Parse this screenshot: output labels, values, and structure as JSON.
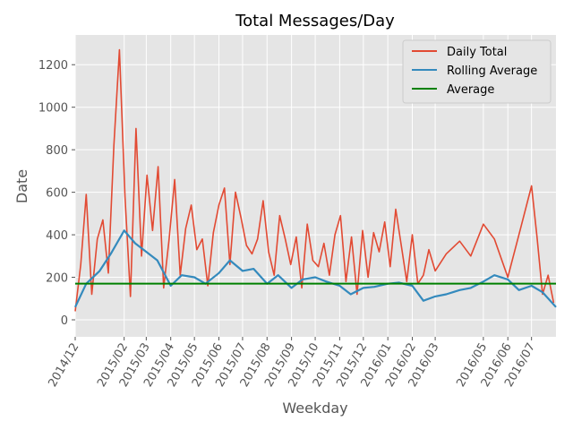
{
  "chart_data": {
    "type": "line",
    "title": "Total Messages/Day",
    "xlabel": "Weekday",
    "ylabel": "Date",
    "x_range": [
      "2014-12-01",
      "2016-08-01"
    ],
    "ylim": [
      -80,
      1340
    ],
    "grid": true,
    "legend_position": "top-right",
    "x_ticks": [
      "2014/12",
      "2015/02",
      "2015/03",
      "2015/04",
      "2015/05",
      "2015/06",
      "2015/07",
      "2015/08",
      "2015/09",
      "2015/10",
      "2015/11",
      "2015/12",
      "2016/01",
      "2016/02",
      "2016/03",
      "2016/05",
      "2016/06",
      "2016/07"
    ],
    "y_ticks": [
      0,
      200,
      400,
      600,
      800,
      1000,
      1200
    ],
    "colors": {
      "background": "#E5E5E5",
      "grid": "#FFFFFF",
      "daily_total": "#E24A33",
      "rolling_average": "#348ABD",
      "average": "#008000"
    },
    "series": [
      {
        "name": "Daily Total",
        "type": "line",
        "x": [
          "2014-12-01",
          "2014-12-08",
          "2014-12-15",
          "2014-12-22",
          "2014-12-29",
          "2015-01-05",
          "2015-01-12",
          "2015-01-19",
          "2015-01-26",
          "2015-02-02",
          "2015-02-09",
          "2015-02-16",
          "2015-02-23",
          "2015-03-02",
          "2015-03-09",
          "2015-03-16",
          "2015-03-23",
          "2015-03-30",
          "2015-04-06",
          "2015-04-13",
          "2015-04-20",
          "2015-04-27",
          "2015-05-04",
          "2015-05-11",
          "2015-05-18",
          "2015-05-25",
          "2015-06-01",
          "2015-06-08",
          "2015-06-15",
          "2015-06-22",
          "2015-06-29",
          "2015-07-06",
          "2015-07-13",
          "2015-07-20",
          "2015-07-27",
          "2015-08-03",
          "2015-08-10",
          "2015-08-17",
          "2015-08-24",
          "2015-08-31",
          "2015-09-07",
          "2015-09-14",
          "2015-09-21",
          "2015-09-28",
          "2015-10-05",
          "2015-10-12",
          "2015-10-19",
          "2015-10-26",
          "2015-11-02",
          "2015-11-09",
          "2015-11-16",
          "2015-11-23",
          "2015-11-30",
          "2015-12-07",
          "2015-12-14",
          "2015-12-21",
          "2015-12-28",
          "2016-01-04",
          "2016-01-11",
          "2016-01-18",
          "2016-01-25",
          "2016-02-01",
          "2016-02-08",
          "2016-02-15",
          "2016-02-22",
          "2016-03-01",
          "2016-03-15",
          "2016-04-01",
          "2016-04-15",
          "2016-05-01",
          "2016-05-15",
          "2016-06-01",
          "2016-06-15",
          "2016-07-01",
          "2016-07-08",
          "2016-07-15",
          "2016-07-22",
          "2016-07-29"
        ],
        "y": [
          40,
          260,
          590,
          120,
          380,
          470,
          220,
          820,
          1270,
          580,
          110,
          900,
          300,
          680,
          420,
          720,
          150,
          380,
          660,
          210,
          430,
          540,
          330,
          380,
          160,
          410,
          540,
          620,
          260,
          600,
          480,
          350,
          310,
          380,
          560,
          320,
          210,
          490,
          380,
          260,
          390,
          150,
          450,
          280,
          250,
          360,
          210,
          400,
          490,
          180,
          390,
          120,
          420,
          200,
          410,
          320,
          460,
          250,
          520,
          350,
          180,
          400,
          170,
          210,
          330,
          230,
          310,
          370,
          300,
          450,
          380,
          200,
          400,
          630,
          390,
          120,
          210,
          80
        ]
      },
      {
        "name": "Rolling Average",
        "type": "line",
        "x": [
          "2014-12-01",
          "2014-12-15",
          "2015-01-01",
          "2015-01-15",
          "2015-02-01",
          "2015-02-15",
          "2015-03-01",
          "2015-03-15",
          "2015-04-01",
          "2015-04-15",
          "2015-05-01",
          "2015-05-15",
          "2015-06-01",
          "2015-06-15",
          "2015-07-01",
          "2015-07-15",
          "2015-08-01",
          "2015-08-15",
          "2015-09-01",
          "2015-09-15",
          "2015-10-01",
          "2015-10-15",
          "2015-11-01",
          "2015-11-15",
          "2015-12-01",
          "2015-12-15",
          "2016-01-01",
          "2016-01-15",
          "2016-02-01",
          "2016-02-15",
          "2016-03-01",
          "2016-03-15",
          "2016-04-01",
          "2016-04-15",
          "2016-05-01",
          "2016-05-15",
          "2016-06-01",
          "2016-06-15",
          "2016-07-01",
          "2016-07-15",
          "2016-08-01"
        ],
        "y": [
          60,
          170,
          230,
          310,
          420,
          360,
          320,
          280,
          160,
          210,
          200,
          170,
          220,
          280,
          230,
          240,
          170,
          210,
          150,
          190,
          200,
          180,
          160,
          120,
          150,
          155,
          170,
          175,
          160,
          90,
          110,
          120,
          140,
          150,
          180,
          210,
          190,
          140,
          160,
          130,
          60
        ]
      },
      {
        "name": "Average",
        "type": "hline",
        "value": 170
      }
    ]
  }
}
